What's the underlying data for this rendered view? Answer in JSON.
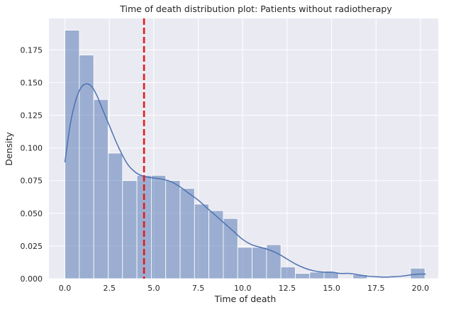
{
  "chart_data": {
    "type": "histogram",
    "title": "Time of death distribution plot: Patients without radiotherapy",
    "xlabel": "Time of death",
    "ylabel": "Density",
    "xlim": [
      -0.9,
      21.0
    ],
    "ylim": [
      0,
      0.199
    ],
    "xticks": [
      0.0,
      2.5,
      5.0,
      7.5,
      10.0,
      12.5,
      15.0,
      17.5,
      20.0
    ],
    "xtick_labels": [
      "0.0",
      "2.5",
      "5.0",
      "7.5",
      "10.0",
      "12.5",
      "15.0",
      "17.5",
      "20.0"
    ],
    "yticks": [
      0.0,
      0.025,
      0.05,
      0.075,
      0.1,
      0.125,
      0.15,
      0.175
    ],
    "ytick_labels": [
      "0.000",
      "0.025",
      "0.050",
      "0.075",
      "0.100",
      "0.125",
      "0.150",
      "0.175"
    ],
    "grid": true,
    "bars": {
      "bin_start": 0.0,
      "bin_width": 0.81,
      "density": [
        0.19,
        0.171,
        0.137,
        0.096,
        0.075,
        0.079,
        0.079,
        0.075,
        0.069,
        0.057,
        0.052,
        0.046,
        0.024,
        0.024,
        0.026,
        0.009,
        0.004,
        0.005,
        0.005,
        0.0,
        0.003,
        0.0,
        0.0,
        0.0,
        0.008
      ],
      "color": "#4c72b0"
    },
    "kde": {
      "name": "KDE",
      "color": "#4c72b0",
      "points": [
        [
          0.0,
          0.089
        ],
        [
          0.3,
          0.118
        ],
        [
          0.6,
          0.136
        ],
        [
          0.9,
          0.146
        ],
        [
          1.2,
          0.149
        ],
        [
          1.5,
          0.147
        ],
        [
          1.8,
          0.14
        ],
        [
          2.1,
          0.13
        ],
        [
          2.5,
          0.117
        ],
        [
          3.0,
          0.101
        ],
        [
          3.5,
          0.088
        ],
        [
          4.0,
          0.081
        ],
        [
          4.5,
          0.078
        ],
        [
          5.0,
          0.077
        ],
        [
          5.5,
          0.076
        ],
        [
          6.0,
          0.074
        ],
        [
          6.5,
          0.07
        ],
        [
          7.0,
          0.065
        ],
        [
          7.5,
          0.06
        ],
        [
          8.0,
          0.054
        ],
        [
          8.5,
          0.048
        ],
        [
          9.0,
          0.042
        ],
        [
          9.5,
          0.036
        ],
        [
          10.0,
          0.03
        ],
        [
          10.5,
          0.026
        ],
        [
          11.0,
          0.024
        ],
        [
          11.5,
          0.022
        ],
        [
          12.0,
          0.019
        ],
        [
          12.5,
          0.015
        ],
        [
          13.0,
          0.011
        ],
        [
          13.5,
          0.008
        ],
        [
          14.0,
          0.006
        ],
        [
          14.5,
          0.005
        ],
        [
          15.0,
          0.005
        ],
        [
          15.5,
          0.004
        ],
        [
          16.0,
          0.004
        ],
        [
          16.5,
          0.003
        ],
        [
          17.0,
          0.002
        ],
        [
          17.5,
          0.0015
        ],
        [
          18.0,
          0.0012
        ],
        [
          18.5,
          0.0015
        ],
        [
          19.0,
          0.002
        ],
        [
          19.5,
          0.003
        ],
        [
          20.0,
          0.0035
        ],
        [
          20.3,
          0.0035
        ]
      ]
    },
    "reference_line": {
      "name": "mean",
      "x": 4.45,
      "color": "#e41a1c",
      "style": "dashed"
    },
    "background_color": "#eaeaf2",
    "grid_color": "#ffffff"
  }
}
